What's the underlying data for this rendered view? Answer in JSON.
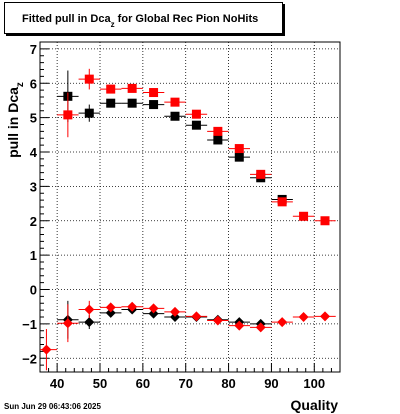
{
  "title_main": "Fitted pull in Dca",
  "title_sub": "z",
  "title_tail": " for Global Rec Pion NoHits",
  "datestamp": "Sun Jun 29 06:43:06 2025",
  "chart_data": {
    "type": "scatter",
    "xlabel": "Quality",
    "ylabel_main": "pull in Dca",
    "ylabel_sub": "z",
    "xlim": [
      36,
      106
    ],
    "ylim": [
      -2.4,
      7.2
    ],
    "x_ticks": [
      40,
      50,
      60,
      70,
      80,
      90,
      100
    ],
    "y_ticks": [
      -2,
      -1,
      0,
      1,
      2,
      3,
      4,
      5,
      6,
      7
    ],
    "grid": true,
    "series": [
      {
        "color": "#000000",
        "marker": "square",
        "points": [
          {
            "x": 42.5,
            "y": 5.62,
            "ex": 2.5,
            "ey": 0.75
          },
          {
            "x": 47.5,
            "y": 5.13,
            "ex": 2.5,
            "ey": 0.25
          },
          {
            "x": 52.5,
            "y": 5.42,
            "ex": 2.5,
            "ey": 0.12
          },
          {
            "x": 57.5,
            "y": 5.42,
            "ex": 2.5,
            "ey": 0.1
          },
          {
            "x": 62.5,
            "y": 5.38,
            "ex": 2.5,
            "ey": 0.08
          },
          {
            "x": 67.5,
            "y": 5.04,
            "ex": 2.5,
            "ey": 0.07
          },
          {
            "x": 72.5,
            "y": 4.78,
            "ex": 2.5,
            "ey": 0.06
          },
          {
            "x": 77.5,
            "y": 4.35,
            "ex": 2.5,
            "ey": 0.06
          },
          {
            "x": 82.5,
            "y": 3.85,
            "ex": 2.5,
            "ey": 0.05
          },
          {
            "x": 87.5,
            "y": 3.25,
            "ex": 2.5,
            "ey": 0.05
          },
          {
            "x": 92.5,
            "y": 2.62,
            "ex": 2.5,
            "ey": 0.05
          }
        ]
      },
      {
        "color": "#ff0000",
        "marker": "square",
        "points": [
          {
            "x": 42.5,
            "y": 5.08,
            "ex": 2.5,
            "ey": 0.65
          },
          {
            "x": 47.5,
            "y": 6.12,
            "ex": 2.5,
            "ey": 0.3
          },
          {
            "x": 52.5,
            "y": 5.83,
            "ex": 2.5,
            "ey": 0.12
          },
          {
            "x": 57.5,
            "y": 5.85,
            "ex": 2.5,
            "ey": 0.1
          },
          {
            "x": 62.5,
            "y": 5.73,
            "ex": 2.5,
            "ey": 0.08
          },
          {
            "x": 67.5,
            "y": 5.45,
            "ex": 2.5,
            "ey": 0.07
          },
          {
            "x": 72.5,
            "y": 5.1,
            "ex": 2.5,
            "ey": 0.06
          },
          {
            "x": 77.5,
            "y": 4.6,
            "ex": 2.5,
            "ey": 0.06
          },
          {
            "x": 82.5,
            "y": 4.1,
            "ex": 2.5,
            "ey": 0.05
          },
          {
            "x": 87.5,
            "y": 3.35,
            "ex": 2.5,
            "ey": 0.05
          },
          {
            "x": 92.5,
            "y": 2.55,
            "ex": 2.5,
            "ey": 0.05
          },
          {
            "x": 97.5,
            "y": 2.13,
            "ex": 2.5,
            "ey": 0.05
          },
          {
            "x": 102.5,
            "y": 2.0,
            "ex": 2.5,
            "ey": 0.05
          }
        ]
      },
      {
        "color": "#000000",
        "marker": "diamond",
        "points": [
          {
            "x": 42.5,
            "y": -0.88,
            "ex": 2.5,
            "ey": 0.55
          },
          {
            "x": 47.5,
            "y": -0.95,
            "ex": 2.5,
            "ey": 0.2
          },
          {
            "x": 52.5,
            "y": -0.68,
            "ex": 2.5,
            "ey": 0.1
          },
          {
            "x": 57.5,
            "y": -0.58,
            "ex": 2.5,
            "ey": 0.08
          },
          {
            "x": 62.5,
            "y": -0.7,
            "ex": 2.5,
            "ey": 0.07
          },
          {
            "x": 67.5,
            "y": -0.8,
            "ex": 2.5,
            "ey": 0.06
          },
          {
            "x": 72.5,
            "y": -0.8,
            "ex": 2.5,
            "ey": 0.05
          },
          {
            "x": 77.5,
            "y": -0.88,
            "ex": 2.5,
            "ey": 0.05
          },
          {
            "x": 82.5,
            "y": -0.95,
            "ex": 2.5,
            "ey": 0.05
          },
          {
            "x": 87.5,
            "y": -1.0,
            "ex": 2.5,
            "ey": 0.05
          }
        ]
      },
      {
        "color": "#ff0000",
        "marker": "diamond",
        "points": [
          {
            "x": 37.5,
            "y": -1.75,
            "ex": 2.5,
            "ey": 0.6
          },
          {
            "x": 42.5,
            "y": -0.98,
            "ex": 2.5,
            "ey": 0.55
          },
          {
            "x": 47.5,
            "y": -0.58,
            "ex": 2.5,
            "ey": 0.25
          },
          {
            "x": 52.5,
            "y": -0.52,
            "ex": 2.5,
            "ey": 0.1
          },
          {
            "x": 57.5,
            "y": -0.5,
            "ex": 2.5,
            "ey": 0.08
          },
          {
            "x": 62.5,
            "y": -0.55,
            "ex": 2.5,
            "ey": 0.07
          },
          {
            "x": 67.5,
            "y": -0.65,
            "ex": 2.5,
            "ey": 0.06
          },
          {
            "x": 72.5,
            "y": -0.78,
            "ex": 2.5,
            "ey": 0.05
          },
          {
            "x": 77.5,
            "y": -0.9,
            "ex": 2.5,
            "ey": 0.05
          },
          {
            "x": 82.5,
            "y": -1.05,
            "ex": 2.5,
            "ey": 0.05
          },
          {
            "x": 87.5,
            "y": -1.1,
            "ex": 2.5,
            "ey": 0.05
          },
          {
            "x": 92.5,
            "y": -0.95,
            "ex": 2.5,
            "ey": 0.05
          },
          {
            "x": 97.5,
            "y": -0.8,
            "ex": 2.5,
            "ey": 0.05
          },
          {
            "x": 102.5,
            "y": -0.78,
            "ex": 2.5,
            "ey": 0.05
          }
        ]
      }
    ]
  }
}
